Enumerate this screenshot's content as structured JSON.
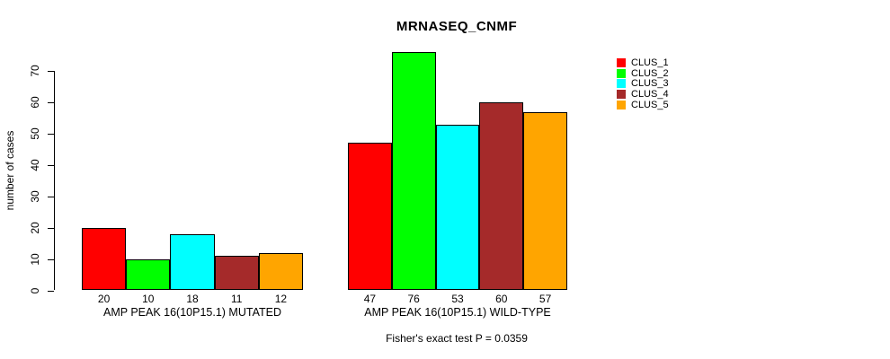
{
  "chart_data": {
    "type": "bar",
    "title": "MRNASEQ_CNMF",
    "ylabel": "number of cases",
    "ylim": [
      0,
      70
    ],
    "yticks": [
      0,
      10,
      20,
      30,
      40,
      50,
      60,
      70
    ],
    "grid": false,
    "legend_position": "right",
    "categories": [
      "AMP PEAK 16(10P15.1) MUTATED",
      "AMP PEAK 16(10P15.1) WILD-TYPE"
    ],
    "series": [
      {
        "name": "CLUS_1",
        "color": "#FF0000",
        "values": [
          20,
          47
        ]
      },
      {
        "name": "CLUS_2",
        "color": "#00FF00",
        "values": [
          10,
          76
        ]
      },
      {
        "name": "CLUS_3",
        "color": "#00FFFF",
        "values": [
          18,
          53
        ]
      },
      {
        "name": "CLUS_4",
        "color": "#A52A2A",
        "values": [
          11,
          60
        ]
      },
      {
        "name": "CLUS_5",
        "color": "#FFA500",
        "values": [
          12,
          57
        ]
      }
    ],
    "value_labels": [
      [
        20,
        10,
        18,
        11,
        12
      ],
      [
        47,
        76,
        53,
        60,
        57
      ]
    ],
    "annotation": "Fisher's exact test P = 0.0359"
  }
}
